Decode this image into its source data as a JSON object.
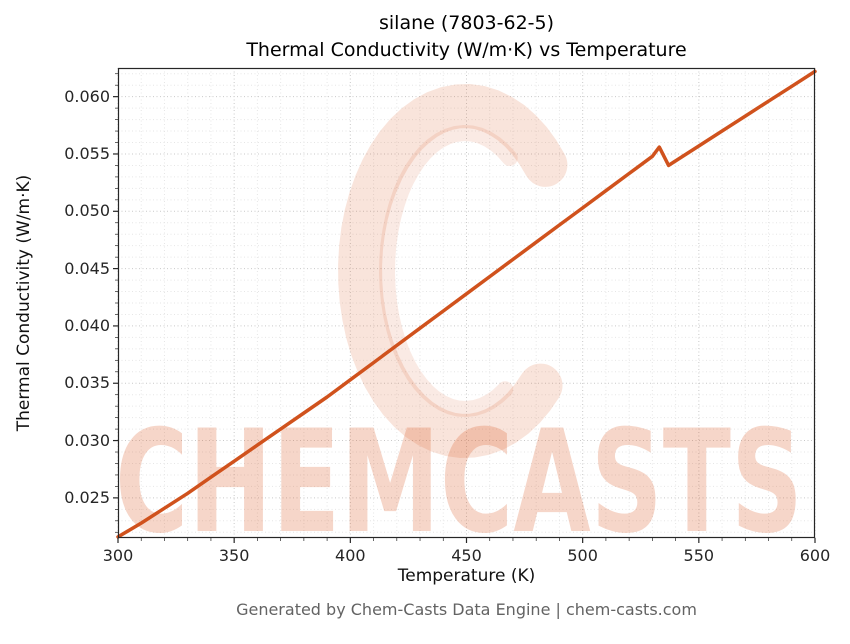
{
  "title": {
    "line1": "silane (7803-62-5)",
    "line2": "Thermal Conductivity (W/m·K) vs Temperature"
  },
  "footer": "Generated by Chem-Casts Data Engine | chem-casts.com",
  "watermark": {
    "text": "CHEMCASTS",
    "color": "#d9541e"
  },
  "chart_data": {
    "type": "line",
    "title": "silane (7803-62-5) — Thermal Conductivity (W/m·K) vs Temperature",
    "xlabel": "Temperature (K)",
    "ylabel": "Thermal Conductivity (W/m·K)",
    "xlim": [
      300,
      600
    ],
    "ylim": [
      0.0215,
      0.0625
    ],
    "x_ticks": [
      300,
      350,
      400,
      450,
      500,
      550,
      600
    ],
    "y_ticks": [
      0.025,
      0.03,
      0.035,
      0.04,
      0.045,
      0.05,
      0.055,
      0.06
    ],
    "grid": true,
    "legend": false,
    "line_color": "#d0521d",
    "series": [
      {
        "name": "thermal_conductivity",
        "points": [
          [
            300,
            0.0216
          ],
          [
            310,
            0.0228
          ],
          [
            320,
            0.0241
          ],
          [
            330,
            0.0254
          ],
          [
            340,
            0.0268
          ],
          [
            350,
            0.0282
          ],
          [
            360,
            0.0296
          ],
          [
            370,
            0.031
          ],
          [
            380,
            0.0324
          ],
          [
            390,
            0.0338
          ],
          [
            400,
            0.0353
          ],
          [
            410,
            0.0368
          ],
          [
            420,
            0.0383
          ],
          [
            430,
            0.0398
          ],
          [
            440,
            0.0413
          ],
          [
            450,
            0.0428
          ],
          [
            460,
            0.0443
          ],
          [
            470,
            0.0458
          ],
          [
            480,
            0.0473
          ],
          [
            490,
            0.0488
          ],
          [
            500,
            0.0503
          ],
          [
            510,
            0.0518
          ],
          [
            520,
            0.0533
          ],
          [
            530,
            0.0548
          ],
          [
            533,
            0.0556
          ],
          [
            537,
            0.054
          ],
          [
            540,
            0.0544
          ],
          [
            550,
            0.0557
          ],
          [
            560,
            0.057
          ],
          [
            570,
            0.0583
          ],
          [
            580,
            0.0596
          ],
          [
            590,
            0.0609
          ],
          [
            600,
            0.0622
          ]
        ]
      }
    ]
  }
}
